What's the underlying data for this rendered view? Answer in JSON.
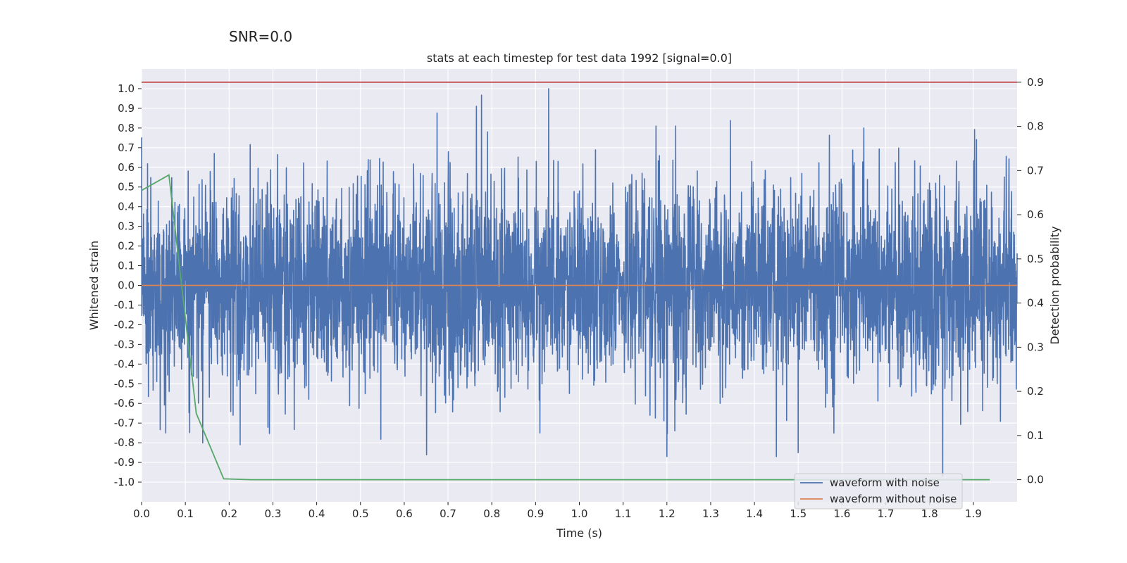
{
  "suptitle": "SNR=0.0",
  "chart_data": {
    "type": "line",
    "title": "stats at each timestep for test data 1992 [signal=0.0]",
    "xlabel": "Time (s)",
    "ylabel": "Whitened strain",
    "y2label": "Detection probability",
    "xlim": [
      0.0,
      2.0
    ],
    "ylim": [
      -1.1,
      1.1
    ],
    "y2lim": [
      -0.05,
      0.93
    ],
    "xticks": [
      0.0,
      0.1,
      0.2,
      0.3,
      0.4,
      0.5,
      0.6,
      0.7,
      0.8,
      0.9,
      1.0,
      1.1,
      1.2,
      1.3,
      1.4,
      1.5,
      1.6,
      1.7,
      1.8,
      1.9
    ],
    "xtick_labels": [
      "0.0",
      "0.1",
      "0.2",
      "0.3",
      "0.4",
      "0.5",
      "0.6",
      "0.7",
      "0.8",
      "0.9",
      "1.0",
      "1.1",
      "1.2",
      "1.3",
      "1.4",
      "1.5",
      "1.6",
      "1.7",
      "1.8",
      "1.9"
    ],
    "yticks": [
      1.0,
      0.9,
      0.8,
      0.7,
      0.6,
      0.5,
      0.4,
      0.3,
      0.2,
      0.1,
      0.0,
      -0.1,
      -0.2,
      -0.3,
      -0.4,
      -0.5,
      -0.6,
      -0.7,
      -0.8,
      -0.9,
      -1.0
    ],
    "ytick_labels": [
      "1.0",
      "0.9",
      "0.8",
      "0.7",
      "0.6",
      "0.5",
      "0.4",
      "0.3",
      "0.2",
      "0.1",
      "0.0",
      "-0.1",
      "-0.2",
      "-0.3",
      "-0.4",
      "-0.5",
      "-0.6",
      "-0.7",
      "-0.8",
      "-0.9",
      "-1.0"
    ],
    "y2ticks": [
      0.9,
      0.8,
      0.7,
      0.6,
      0.5,
      0.4,
      0.3,
      0.2,
      0.1,
      0.0
    ],
    "y2tick_labels": [
      "0.9",
      "0.8",
      "0.7",
      "0.6",
      "0.5",
      "0.4",
      "0.3",
      "0.2",
      "0.1",
      "0.0"
    ],
    "grid": true,
    "legend_position": "bottom-right",
    "legend": [
      "waveform with noise",
      "waveform without noise"
    ],
    "colors": {
      "noise": "#4c72b0",
      "clean": "#dd8452",
      "probability": "#55a868",
      "threshold": "#c44e52",
      "background": "#eaeaf2",
      "grid": "#ffffff",
      "text": "#262626"
    },
    "series": [
      {
        "name": "waveform with noise",
        "axis": "left",
        "generator": "pseudo-random noise approx. Gaussian, sigma 0.25, clipped to [-1, 1]",
        "num_samples": 4096,
        "x_range": [
          0.0,
          2.0
        ],
        "peaks": [
          {
            "x": 0.93,
            "y": 1.0
          },
          {
            "x": 0.765,
            "y": 0.91
          },
          {
            "x": 1.175,
            "y": 0.81
          },
          {
            "x": 1.22,
            "y": 0.81
          },
          {
            "x": 1.65,
            "y": 0.8
          },
          {
            "x": 0.79,
            "y": 0.78
          },
          {
            "x": 1.83,
            "y": -0.97
          },
          {
            "x": 1.2,
            "y": -0.87
          },
          {
            "x": 1.45,
            "y": -0.87
          },
          {
            "x": 1.5,
            "y": -0.85
          },
          {
            "x": 0.225,
            "y": -0.81
          },
          {
            "x": 0.91,
            "y": -0.75
          },
          {
            "x": 0.055,
            "y": -0.75
          }
        ]
      },
      {
        "name": "waveform without noise",
        "axis": "left",
        "x": [
          0.0,
          2.0
        ],
        "y": [
          0.0,
          0.0
        ]
      },
      {
        "name": "detection probability",
        "axis": "right",
        "x": [
          0.0,
          0.0625,
          0.125,
          0.1875,
          0.25,
          0.3,
          0.5,
          1.0,
          1.5,
          1.9375
        ],
        "y": [
          0.655,
          0.69,
          0.15,
          0.002,
          0.0,
          0.0,
          0.0,
          0.0,
          0.0,
          0.0
        ]
      },
      {
        "name": "threshold",
        "axis": "right",
        "x": [
          0.0,
          2.0
        ],
        "y": [
          0.9,
          0.9
        ]
      }
    ]
  }
}
